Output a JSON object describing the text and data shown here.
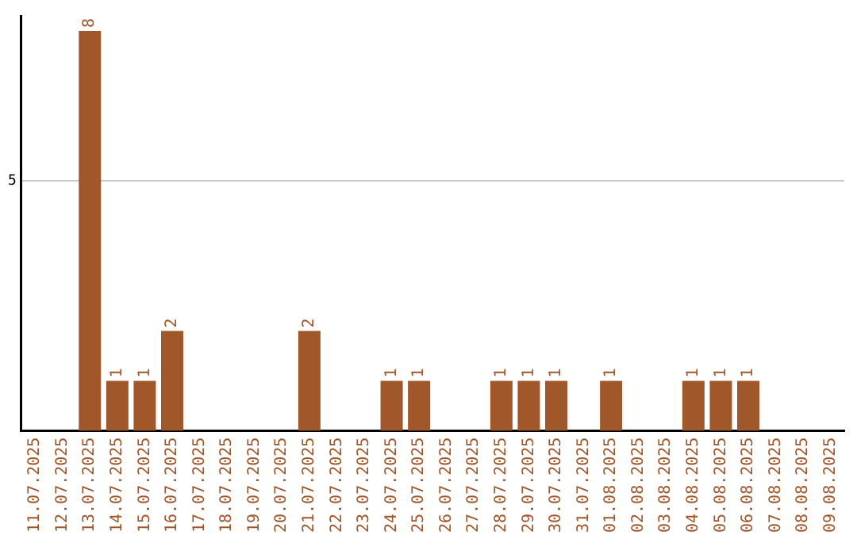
{
  "chart_data": {
    "type": "bar",
    "categories": [
      "11.07.2025",
      "12.07.2025",
      "13.07.2025",
      "14.07.2025",
      "15.07.2025",
      "16.07.2025",
      "17.07.2025",
      "18.07.2025",
      "19.07.2025",
      "20.07.2025",
      "21.07.2025",
      "22.07.2025",
      "23.07.2025",
      "24.07.2025",
      "25.07.2025",
      "26.07.2025",
      "27.07.2025",
      "28.07.2025",
      "29.07.2025",
      "30.07.2025",
      "31.07.2025",
      "01.08.2025",
      "02.08.2025",
      "03.08.2025",
      "04.08.2025",
      "05.08.2025",
      "06.08.2025",
      "07.08.2025",
      "08.08.2025",
      "09.08.2025"
    ],
    "values": [
      0,
      0,
      8,
      1,
      1,
      2,
      0,
      0,
      0,
      0,
      2,
      0,
      0,
      1,
      1,
      0,
      0,
      1,
      1,
      1,
      0,
      1,
      0,
      0,
      1,
      1,
      1,
      0,
      0,
      0
    ],
    "value_labels": [
      null,
      null,
      "8",
      "1",
      "1",
      "2",
      null,
      null,
      null,
      null,
      "2",
      null,
      null,
      "1",
      "1",
      null,
      null,
      "1",
      "1",
      "1",
      null,
      "1",
      null,
      null,
      "1",
      "1",
      "1",
      null,
      null,
      null
    ],
    "color": "#a0572a",
    "ylim": [
      0,
      8.3
    ],
    "yticks": [
      5
    ],
    "grid": "y",
    "legend": false
  }
}
